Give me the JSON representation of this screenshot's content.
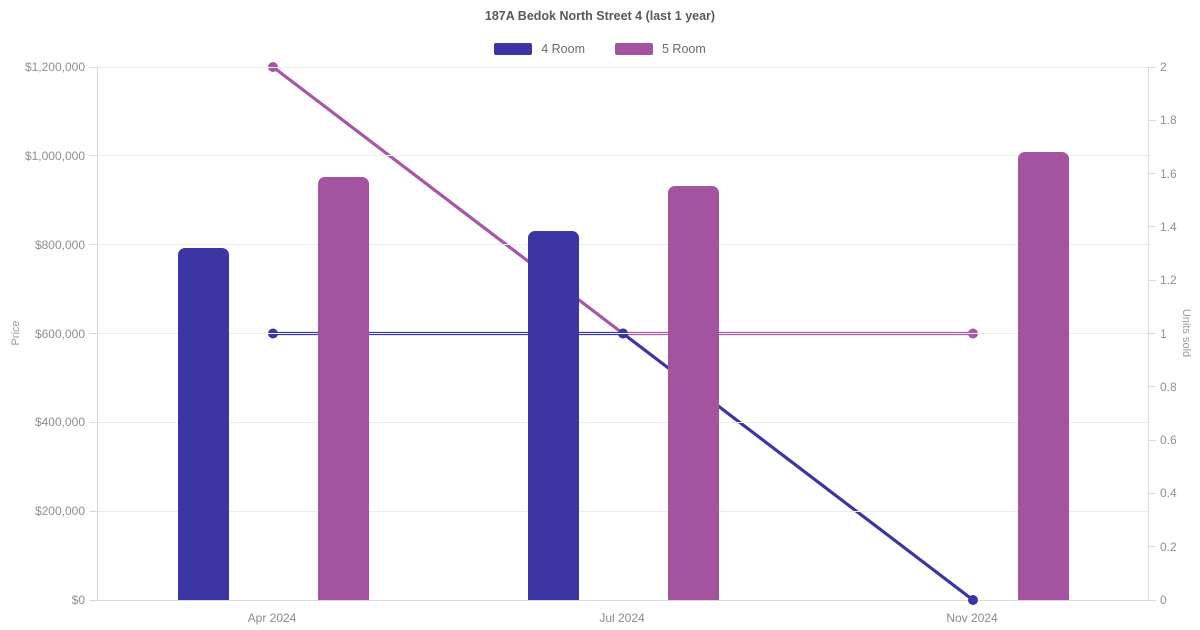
{
  "chart_data": {
    "type": "bar+line",
    "title": "187A Bedok North Street 4 (last 1 year)",
    "categories": [
      "Apr 2024",
      "Jul 2024",
      "Nov 2024"
    ],
    "bar_series": [
      {
        "name": "4 Room",
        "axis": "left",
        "color": "#3c36a4",
        "values": [
          792000,
          830000,
          null
        ]
      },
      {
        "name": "5 Room",
        "axis": "left",
        "color": "#a4539e",
        "values": [
          952000,
          932000,
          1008000
        ]
      }
    ],
    "line_series": [
      {
        "name": "4 Room",
        "axis": "right",
        "color": "#3c36a4",
        "values": [
          1,
          1,
          0
        ]
      },
      {
        "name": "5 Room",
        "axis": "right",
        "color": "#a658a6",
        "values": [
          2,
          1,
          1
        ]
      }
    ],
    "left_axis": {
      "label": "Price",
      "min": 0,
      "max": 1200000,
      "step": 200000,
      "ticks": [
        "$0",
        "$200,000",
        "$400,000",
        "$600,000",
        "$800,000",
        "$1,000,000",
        "$1,200,000"
      ]
    },
    "right_axis": {
      "label": "Units sold",
      "min": 0,
      "max": 2,
      "step": 0.2,
      "ticks": [
        "0",
        "0.2",
        "0.4",
        "0.6",
        "0.8",
        "1",
        "1.2",
        "1.4",
        "1.6",
        "1.8",
        "2"
      ]
    },
    "grid": true,
    "legend_position": "top"
  }
}
